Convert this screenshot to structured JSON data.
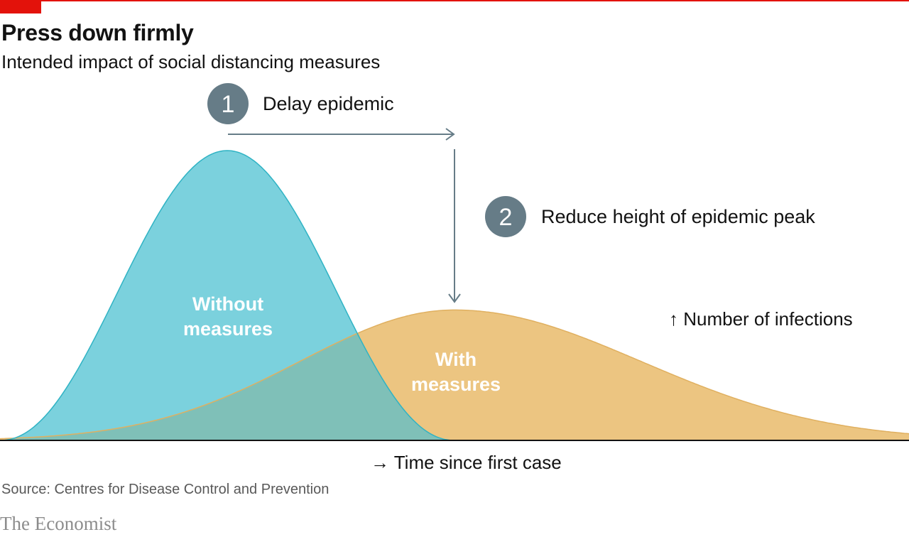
{
  "header": {
    "title": "Press down firmly",
    "subtitle": "Intended impact of social distancing measures"
  },
  "footer": {
    "source": "Source: Centres for Disease Control and Prevention",
    "brand": "The Economist"
  },
  "colors": {
    "accent_red": "#e3120b",
    "without_fill": "#7bd1dd",
    "without_stroke": "#2fb3c4",
    "with_fill": "#ecc581",
    "with_stroke": "#e0b060",
    "overlap_fill": "#7fc0b8",
    "annotation_grey": "#667c87",
    "axis": "#121212"
  },
  "annotations": [
    {
      "number": "1",
      "text": "Delay epidemic"
    },
    {
      "number": "2",
      "text": "Reduce height of epidemic peak"
    }
  ],
  "axes": {
    "y_label": "↑ Number of infections",
    "x_label": "→ Time since first case"
  },
  "chart_data": {
    "type": "area",
    "title": "Press down firmly",
    "subtitle": "Intended impact of social distancing measures",
    "xlabel": "Time since first case",
    "ylabel": "Number of infections",
    "x_range": [
      0,
      1
    ],
    "y_range": [
      0,
      1
    ],
    "grid": false,
    "series": [
      {
        "name": "Without measures",
        "label_lines": [
          "Without",
          "measures"
        ],
        "peak_x": 0.25,
        "peak_y": 1.0,
        "shape": "narrow"
      },
      {
        "name": "With measures",
        "label_lines": [
          "With",
          "measures"
        ],
        "peak_x": 0.5,
        "peak_y": 0.45,
        "shape": "wide"
      }
    ]
  }
}
